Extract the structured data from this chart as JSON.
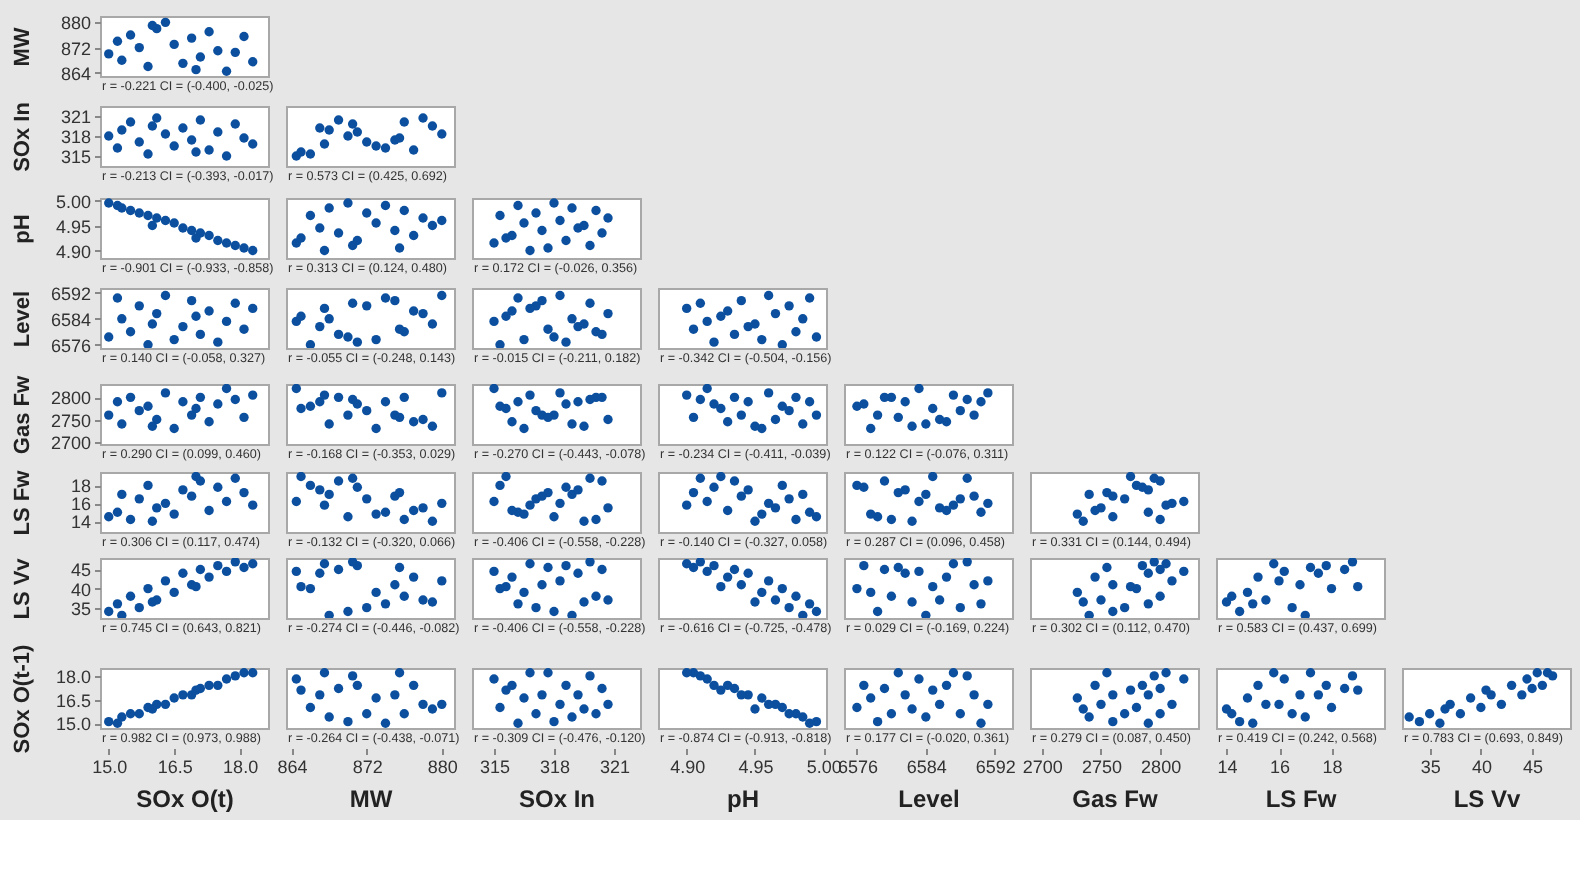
{
  "chart_data": [
    {
      "type": "scatter",
      "ylabel": "MW",
      "x": [
        15.0,
        15.2,
        15.3,
        15.5,
        15.7,
        15.9,
        16.1,
        16.3,
        16.5,
        16.7,
        16.9,
        17.1,
        17.3,
        17.5,
        17.7,
        17.9,
        18.1,
        18.3,
        16.0,
        17.0
      ],
      "series": [
        {
          "color": "#0b4f9e",
          "values": [
            870,
            874,
            868,
            876,
            872,
            866,
            878,
            880,
            873,
            867,
            875,
            869,
            877,
            871,
            864.5,
            870.5,
            875.5,
            867.5,
            879,
            865
          ]
        }
      ],
      "xlim": [
        14.8,
        18.65
      ],
      "ylim": [
        863,
        882
      ],
      "yticks": [
        864,
        872,
        880
      ],
      "marker": "circle",
      "tick_labels": "y",
      "annotations": [
        "r = -0.221 CI = (-0.400, -0.025)"
      ]
    },
    {
      "type": "scatter",
      "ylabel": "SOx In",
      "x": [
        15.0,
        15.2,
        15.3,
        15.5,
        15.7,
        15.9,
        16.1,
        16.3,
        16.5,
        16.7,
        16.9,
        17.1,
        17.3,
        17.5,
        17.7,
        17.9,
        18.1,
        18.3,
        16.0,
        17.0
      ],
      "series": [
        {
          "color": "#0b4f9e",
          "values": [
            318.0,
            316.2,
            318.9,
            320.1,
            317.1,
            315.3,
            320.7,
            318.3,
            316.5,
            319.2,
            317.4,
            320.4,
            315.9,
            318.6,
            315.0,
            319.8,
            317.7,
            316.8,
            319.5,
            315.6
          ]
        }
      ],
      "xlim": [
        14.8,
        18.65
      ],
      "ylim": [
        313.5,
        322.5
      ],
      "yticks": [
        315,
        318,
        321
      ],
      "marker": "circle",
      "tick_labels": "y",
      "annotations": [
        "r = -0.213 CI = (-0.393, -0.017)"
      ]
    },
    {
      "type": "scatter",
      "x": [
        870,
        874,
        868,
        876,
        872,
        866,
        878,
        880,
        873,
        867,
        875,
        869,
        877,
        871,
        864.5,
        870.5,
        875.5,
        867.5,
        879,
        865
      ],
      "series": [
        {
          "color": "#0b4f9e",
          "values": [
            318.0,
            316.2,
            318.9,
            320.1,
            317.1,
            315.3,
            320.7,
            318.3,
            316.5,
            319.2,
            317.4,
            320.4,
            315.9,
            318.6,
            315.0,
            319.8,
            317.7,
            316.8,
            319.5,
            315.6
          ]
        }
      ],
      "xlim": [
        863.4,
        881.3
      ],
      "ylim": [
        313.5,
        322.5
      ],
      "marker": "circle",
      "tick_labels": false,
      "annotations": [
        "r = 0.573 CI = (0.425, 0.692)"
      ]
    },
    {
      "type": "scatter",
      "ylabel": "pH",
      "x": [
        15.0,
        15.2,
        15.3,
        15.5,
        15.7,
        15.9,
        16.1,
        16.3,
        16.5,
        16.7,
        16.9,
        17.1,
        17.3,
        17.5,
        17.7,
        17.9,
        18.1,
        18.3,
        16.0,
        17.0
      ],
      "series": [
        {
          "color": "#0b4f9e",
          "values": [
            4.995,
            4.99,
            4.985,
            4.98,
            4.975,
            4.97,
            4.965,
            4.96,
            4.955,
            4.945,
            4.94,
            4.935,
            4.93,
            4.92,
            4.915,
            4.91,
            4.905,
            4.9,
            4.95,
            4.925
          ]
        }
      ],
      "xlim": [
        14.8,
        18.65
      ],
      "ylim": [
        4.885,
        5.005
      ],
      "yticks": [
        {
          "value": 4.9,
          "label": "4.90"
        },
        4.95,
        {
          "value": 5,
          "label": "5.00"
        }
      ],
      "marker": "circle",
      "tick_labels": "y",
      "annotations": [
        "r = -0.901 CI = (-0.933, -0.858)"
      ]
    },
    {
      "type": "scatter",
      "x": [
        870,
        874,
        868,
        876,
        872,
        866,
        878,
        880,
        873,
        867,
        875,
        869,
        877,
        871,
        864.5,
        870.5,
        875.5,
        867.5,
        879,
        865
      ],
      "series": [
        {
          "color": "#0b4f9e",
          "values": [
            4.995,
            4.99,
            4.985,
            4.98,
            4.975,
            4.97,
            4.965,
            4.96,
            4.955,
            4.945,
            4.94,
            4.935,
            4.93,
            4.92,
            4.915,
            4.91,
            4.905,
            4.9,
            4.95,
            4.925
          ]
        }
      ],
      "xlim": [
        863.4,
        881.3
      ],
      "ylim": [
        4.885,
        5.005
      ],
      "marker": "circle",
      "tick_labels": false,
      "annotations": [
        "r = 0.313 CI = (0.124, 0.480)"
      ]
    },
    {
      "type": "scatter",
      "x": [
        318.0,
        316.2,
        318.9,
        320.1,
        317.1,
        315.3,
        320.7,
        318.3,
        316.5,
        319.2,
        317.4,
        320.4,
        315.9,
        318.6,
        315.0,
        319.8,
        317.7,
        316.8,
        319.5,
        315.6
      ],
      "series": [
        {
          "color": "#0b4f9e",
          "values": [
            4.995,
            4.99,
            4.985,
            4.98,
            4.975,
            4.97,
            4.965,
            4.96,
            4.955,
            4.945,
            4.94,
            4.935,
            4.93,
            4.92,
            4.915,
            4.91,
            4.905,
            4.9,
            4.95,
            4.925
          ]
        }
      ],
      "xlim": [
        313.9,
        322.3
      ],
      "ylim": [
        4.885,
        5.005
      ],
      "marker": "circle",
      "tick_labels": false,
      "annotations": [
        "r = 0.172 CI = (-0.026, 0.356)"
      ]
    },
    {
      "type": "scatter",
      "ylabel": "Level",
      "x": [
        15.0,
        15.2,
        15.3,
        15.5,
        15.7,
        15.9,
        16.1,
        16.3,
        16.5,
        16.7,
        16.9,
        17.1,
        17.3,
        17.5,
        17.7,
        17.9,
        18.1,
        18.3,
        16.0,
        17.0
      ],
      "series": [
        {
          "color": "#0b4f9e",
          "values": [
            6578.4,
            6590.4,
            6584.0,
            6580.0,
            6588.0,
            6576.0,
            6585.6,
            6591.2,
            6577.6,
            6581.6,
            6589.6,
            6579.2,
            6586.4,
            6576.8,
            6583.2,
            6588.8,
            6580.8,
            6587.2,
            6582.4,
            6584.8
          ]
        }
      ],
      "xlim": [
        14.8,
        18.65
      ],
      "ylim": [
        6575,
        6593.5
      ],
      "yticks": [
        6576,
        6584,
        6592
      ],
      "marker": "circle",
      "tick_labels": "y",
      "annotations": [
        "r = 0.140 CI = (-0.058, 0.327)"
      ]
    },
    {
      "type": "scatter",
      "x": [
        870,
        874,
        868,
        876,
        872,
        866,
        878,
        880,
        873,
        867,
        875,
        869,
        877,
        871,
        864.5,
        870.5,
        875.5,
        867.5,
        879,
        865
      ],
      "series": [
        {
          "color": "#0b4f9e",
          "values": [
            6578.4,
            6590.4,
            6584.0,
            6580.0,
            6588.0,
            6576.0,
            6585.6,
            6591.2,
            6577.6,
            6581.6,
            6589.6,
            6579.2,
            6586.4,
            6576.8,
            6583.2,
            6588.8,
            6580.8,
            6587.2,
            6582.4,
            6584.8
          ]
        }
      ],
      "xlim": [
        863.4,
        881.3
      ],
      "ylim": [
        6575,
        6593.5
      ],
      "marker": "circle",
      "tick_labels": false,
      "annotations": [
        "r = -0.055 CI = (-0.248, 0.143)"
      ]
    },
    {
      "type": "scatter",
      "x": [
        318.0,
        316.2,
        318.9,
        320.1,
        317.1,
        315.3,
        320.7,
        318.3,
        316.5,
        319.2,
        317.4,
        320.4,
        315.9,
        318.6,
        315.0,
        319.8,
        317.7,
        316.8,
        319.5,
        315.6
      ],
      "series": [
        {
          "color": "#0b4f9e",
          "values": [
            6578.4,
            6590.4,
            6584.0,
            6580.0,
            6588.0,
            6576.0,
            6585.6,
            6591.2,
            6577.6,
            6581.6,
            6589.6,
            6579.2,
            6586.4,
            6576.8,
            6583.2,
            6588.8,
            6580.8,
            6587.2,
            6582.4,
            6584.8
          ]
        }
      ],
      "xlim": [
        313.9,
        322.3
      ],
      "ylim": [
        6575,
        6593.5
      ],
      "marker": "circle",
      "tick_labels": false,
      "annotations": [
        "r = -0.015 CI = (-0.211, 0.182)"
      ]
    },
    {
      "type": "scatter",
      "x": [
        4.995,
        4.99,
        4.985,
        4.98,
        4.975,
        4.97,
        4.965,
        4.96,
        4.955,
        4.945,
        4.94,
        4.935,
        4.93,
        4.92,
        4.915,
        4.91,
        4.905,
        4.9,
        4.95,
        4.925
      ],
      "series": [
        {
          "color": "#0b4f9e",
          "values": [
            6578.4,
            6590.4,
            6584.0,
            6580.0,
            6588.0,
            6576.0,
            6585.6,
            6591.2,
            6577.6,
            6581.6,
            6589.6,
            6579.2,
            6586.4,
            6576.8,
            6583.2,
            6588.8,
            6580.8,
            6587.2,
            6582.4,
            6584.8
          ]
        }
      ],
      "xlim": [
        4.879,
        5.002
      ],
      "ylim": [
        6575,
        6593.5
      ],
      "marker": "circle",
      "tick_labels": false,
      "annotations": [
        "r = -0.342 CI = (-0.504, -0.156)"
      ]
    },
    {
      "type": "scatter",
      "ylabel": "Gas Fw",
      "x": [
        15.0,
        15.2,
        15.3,
        15.5,
        15.7,
        15.9,
        16.1,
        16.3,
        16.5,
        16.7,
        16.9,
        17.1,
        17.3,
        17.5,
        17.7,
        17.9,
        18.1,
        18.3,
        16.0,
        17.0
      ],
      "series": [
        {
          "color": "#0b4f9e",
          "values": [
            2760,
            2790,
            2740,
            2800,
            2770,
            2780,
            2750,
            2810,
            2730,
            2790,
            2760,
            2800,
            2745,
            2785,
            2820,
            2795,
            2755,
            2805,
            2735,
            2775
          ]
        }
      ],
      "xlim": [
        14.8,
        18.65
      ],
      "ylim": [
        2695,
        2830
      ],
      "yticks": [
        2700,
        2750,
        2800
      ],
      "marker": "circle",
      "tick_labels": "y",
      "annotations": [
        "r = 0.290 CI = (0.099, 0.460)"
      ]
    },
    {
      "type": "scatter",
      "x": [
        870,
        874,
        868,
        876,
        872,
        866,
        878,
        880,
        873,
        867,
        875,
        869,
        877,
        871,
        864.5,
        870.5,
        875.5,
        867.5,
        879,
        865
      ],
      "series": [
        {
          "color": "#0b4f9e",
          "values": [
            2760,
            2790,
            2740,
            2800,
            2770,
            2780,
            2750,
            2810,
            2730,
            2790,
            2760,
            2800,
            2745,
            2785,
            2820,
            2795,
            2755,
            2805,
            2735,
            2775
          ]
        }
      ],
      "xlim": [
        863.4,
        881.3
      ],
      "ylim": [
        2695,
        2830
      ],
      "marker": "circle",
      "tick_labels": false,
      "annotations": [
        "r = -0.168 CI = (-0.353, 0.029)"
      ]
    },
    {
      "type": "scatter",
      "x": [
        318.0,
        316.2,
        318.9,
        320.1,
        317.1,
        315.3,
        320.7,
        318.3,
        316.5,
        319.2,
        317.4,
        320.4,
        315.9,
        318.6,
        315.0,
        319.8,
        317.7,
        316.8,
        319.5,
        315.6
      ],
      "series": [
        {
          "color": "#0b4f9e",
          "values": [
            2760,
            2790,
            2740,
            2800,
            2770,
            2780,
            2750,
            2810,
            2730,
            2790,
            2760,
            2800,
            2745,
            2785,
            2820,
            2795,
            2755,
            2805,
            2735,
            2775
          ]
        }
      ],
      "xlim": [
        313.9,
        322.3
      ],
      "ylim": [
        2695,
        2830
      ],
      "marker": "circle",
      "tick_labels": false,
      "annotations": [
        "r = -0.270 CI = (-0.443, -0.078)"
      ]
    },
    {
      "type": "scatter",
      "x": [
        4.995,
        4.99,
        4.985,
        4.98,
        4.975,
        4.97,
        4.965,
        4.96,
        4.955,
        4.945,
        4.94,
        4.935,
        4.93,
        4.92,
        4.915,
        4.91,
        4.905,
        4.9,
        4.95,
        4.925
      ],
      "series": [
        {
          "color": "#0b4f9e",
          "values": [
            2760,
            2790,
            2740,
            2800,
            2770,
            2780,
            2750,
            2810,
            2730,
            2790,
            2760,
            2800,
            2745,
            2785,
            2820,
            2795,
            2755,
            2805,
            2735,
            2775
          ]
        }
      ],
      "xlim": [
        4.879,
        5.002
      ],
      "ylim": [
        2695,
        2830
      ],
      "marker": "circle",
      "tick_labels": false,
      "annotations": [
        "r = -0.234 CI = (-0.411, -0.039)"
      ]
    },
    {
      "type": "scatter",
      "x": [
        6578.4,
        6590.4,
        6584.0,
        6580.0,
        6588.0,
        6576.0,
        6585.6,
        6591.2,
        6577.6,
        6581.6,
        6589.6,
        6579.2,
        6586.4,
        6576.8,
        6583.2,
        6588.8,
        6580.8,
        6587.2,
        6582.4,
        6584.8
      ],
      "series": [
        {
          "color": "#0b4f9e",
          "values": [
            2760,
            2790,
            2740,
            2800,
            2770,
            2780,
            2750,
            2810,
            2730,
            2790,
            2760,
            2800,
            2745,
            2785,
            2820,
            2795,
            2755,
            2805,
            2735,
            2775
          ]
        }
      ],
      "xlim": [
        6574.5,
        6594
      ],
      "ylim": [
        2695,
        2830
      ],
      "marker": "circle",
      "tick_labels": false,
      "annotations": [
        "r = 0.122 CI = (-0.076, 0.311)"
      ]
    },
    {
      "type": "scatter",
      "ylabel": "LS Fw",
      "x": [
        15.0,
        15.2,
        15.3,
        15.5,
        15.7,
        15.9,
        16.1,
        16.3,
        16.5,
        16.7,
        16.9,
        17.1,
        17.3,
        17.5,
        17.7,
        17.9,
        18.1,
        18.3,
        16.0,
        17.0
      ],
      "series": [
        {
          "color": "#0b4f9e",
          "values": [
            14.5,
            15.0,
            17.0,
            14.2,
            16.5,
            18.0,
            15.5,
            16.0,
            14.8,
            17.5,
            16.8,
            18.5,
            15.2,
            17.8,
            16.2,
            18.8,
            17.2,
            15.8,
            14.0,
            19.0
          ]
        }
      ],
      "xlim": [
        14.8,
        18.65
      ],
      "ylim": [
        12.8,
        19.5
      ],
      "yticks": [
        14,
        16,
        18
      ],
      "marker": "circle",
      "tick_labels": "y",
      "annotations": [
        "r = 0.306 CI = (0.117, 0.474)"
      ]
    },
    {
      "type": "scatter",
      "x": [
        870,
        874,
        868,
        876,
        872,
        866,
        878,
        880,
        873,
        867,
        875,
        869,
        877,
        871,
        864.5,
        870.5,
        875.5,
        867.5,
        879,
        865
      ],
      "series": [
        {
          "color": "#0b4f9e",
          "values": [
            14.5,
            15.0,
            17.0,
            14.2,
            16.5,
            18.0,
            15.5,
            16.0,
            14.8,
            17.5,
            16.8,
            18.5,
            15.2,
            17.8,
            16.2,
            18.8,
            17.2,
            15.8,
            14.0,
            19.0
          ]
        }
      ],
      "xlim": [
        863.4,
        881.3
      ],
      "ylim": [
        12.8,
        19.5
      ],
      "marker": "circle",
      "tick_labels": false,
      "annotations": [
        "r = -0.132 CI = (-0.320, 0.066)"
      ]
    },
    {
      "type": "scatter",
      "x": [
        318.0,
        316.2,
        318.9,
        320.1,
        317.1,
        315.3,
        320.7,
        318.3,
        316.5,
        319.2,
        317.4,
        320.4,
        315.9,
        318.6,
        315.0,
        319.8,
        317.7,
        316.8,
        319.5,
        315.6
      ],
      "series": [
        {
          "color": "#0b4f9e",
          "values": [
            14.5,
            15.0,
            17.0,
            14.2,
            16.5,
            18.0,
            15.5,
            16.0,
            14.8,
            17.5,
            16.8,
            18.5,
            15.2,
            17.8,
            16.2,
            18.8,
            17.2,
            15.8,
            14.0,
            19.0
          ]
        }
      ],
      "xlim": [
        313.9,
        322.3
      ],
      "ylim": [
        12.8,
        19.5
      ],
      "marker": "circle",
      "tick_labels": false,
      "annotations": [
        "r = -0.406 CI = (-0.558, -0.228)"
      ]
    },
    {
      "type": "scatter",
      "x": [
        4.995,
        4.99,
        4.985,
        4.98,
        4.975,
        4.97,
        4.965,
        4.96,
        4.955,
        4.945,
        4.94,
        4.935,
        4.93,
        4.92,
        4.915,
        4.91,
        4.905,
        4.9,
        4.95,
        4.925
      ],
      "series": [
        {
          "color": "#0b4f9e",
          "values": [
            14.5,
            15.0,
            17.0,
            14.2,
            16.5,
            18.0,
            15.5,
            16.0,
            14.8,
            17.5,
            16.8,
            18.5,
            15.2,
            17.8,
            16.2,
            18.8,
            17.2,
            15.8,
            14.0,
            19.0
          ]
        }
      ],
      "xlim": [
        4.879,
        5.002
      ],
      "ylim": [
        12.8,
        19.5
      ],
      "marker": "circle",
      "tick_labels": false,
      "annotations": [
        "r = -0.140 CI = (-0.327, 0.058)"
      ]
    },
    {
      "type": "scatter",
      "x": [
        6578.4,
        6590.4,
        6584.0,
        6580.0,
        6588.0,
        6576.0,
        6585.6,
        6591.2,
        6577.6,
        6581.6,
        6589.6,
        6579.2,
        6586.4,
        6576.8,
        6583.2,
        6588.8,
        6580.8,
        6587.2,
        6582.4,
        6584.8
      ],
      "series": [
        {
          "color": "#0b4f9e",
          "values": [
            14.5,
            15.0,
            17.0,
            14.2,
            16.5,
            18.0,
            15.5,
            16.0,
            14.8,
            17.5,
            16.8,
            18.5,
            15.2,
            17.8,
            16.2,
            18.8,
            17.2,
            15.8,
            14.0,
            19.0
          ]
        }
      ],
      "xlim": [
        6574.5,
        6594
      ],
      "ylim": [
        12.8,
        19.5
      ],
      "marker": "circle",
      "tick_labels": false,
      "annotations": [
        "r = 0.287 CI = (0.096, 0.458)"
      ]
    },
    {
      "type": "scatter",
      "x": [
        2760,
        2790,
        2740,
        2800,
        2770,
        2780,
        2750,
        2810,
        2730,
        2790,
        2760,
        2800,
        2745,
        2785,
        2820,
        2795,
        2755,
        2805,
        2735,
        2775
      ],
      "series": [
        {
          "color": "#0b4f9e",
          "values": [
            14.5,
            15.0,
            17.0,
            14.2,
            16.5,
            18.0,
            15.5,
            16.0,
            14.8,
            17.5,
            16.8,
            18.5,
            15.2,
            17.8,
            16.2,
            18.8,
            17.2,
            15.8,
            14.0,
            19.0
          ]
        }
      ],
      "xlim": [
        2690,
        2832
      ],
      "ylim": [
        12.8,
        19.5
      ],
      "marker": "circle",
      "tick_labels": false,
      "annotations": [
        "r = 0.331 CI = (0.144, 0.494)"
      ]
    },
    {
      "type": "scatter",
      "ylabel": "LS Vv",
      "x": [
        15.0,
        15.2,
        15.3,
        15.5,
        15.7,
        15.9,
        16.1,
        16.3,
        16.5,
        16.7,
        16.9,
        17.1,
        17.3,
        17.5,
        17.7,
        17.9,
        18.1,
        18.3,
        16.0,
        17.0
      ],
      "series": [
        {
          "color": "#0b4f9e",
          "values": [
            34,
            36,
            33,
            38,
            35,
            40,
            37,
            42,
            39,
            44,
            41,
            45,
            43,
            46,
            44.5,
            47,
            45.5,
            46.5,
            36.5,
            40.5
          ]
        }
      ],
      "xlim": [
        14.8,
        18.65
      ],
      "ylim": [
        32.3,
        48
      ],
      "yticks": [
        35,
        40,
        45
      ],
      "marker": "circle",
      "tick_labels": "y",
      "annotations": [
        "r = 0.745 CI = (0.643, 0.821)"
      ]
    },
    {
      "type": "scatter",
      "x": [
        870,
        874,
        868,
        876,
        872,
        866,
        878,
        880,
        873,
        867,
        875,
        869,
        877,
        871,
        864.5,
        870.5,
        875.5,
        867.5,
        879,
        865
      ],
      "series": [
        {
          "color": "#0b4f9e",
          "values": [
            34,
            36,
            33,
            38,
            35,
            40,
            37,
            42,
            39,
            44,
            41,
            45,
            43,
            46,
            44.5,
            47,
            45.5,
            46.5,
            36.5,
            40.5
          ]
        }
      ],
      "xlim": [
        863.4,
        881.3
      ],
      "ylim": [
        32.3,
        48
      ],
      "marker": "circle",
      "tick_labels": false,
      "annotations": [
        "r = -0.274 CI = (-0.446, -0.082)"
      ]
    },
    {
      "type": "scatter",
      "x": [
        318.0,
        316.2,
        318.9,
        320.1,
        317.1,
        315.3,
        320.7,
        318.3,
        316.5,
        319.2,
        317.4,
        320.4,
        315.9,
        318.6,
        315.0,
        319.8,
        317.7,
        316.8,
        319.5,
        315.6
      ],
      "series": [
        {
          "color": "#0b4f9e",
          "values": [
            34,
            36,
            33,
            38,
            35,
            40,
            37,
            42,
            39,
            44,
            41,
            45,
            43,
            46,
            44.5,
            47,
            45.5,
            46.5,
            36.5,
            40.5
          ]
        }
      ],
      "xlim": [
        313.9,
        322.3
      ],
      "ylim": [
        32.3,
        48
      ],
      "marker": "circle",
      "tick_labels": false,
      "annotations": [
        "r = -0.406 CI = (-0.558, -0.228)"
      ]
    },
    {
      "type": "scatter",
      "x": [
        4.995,
        4.99,
        4.985,
        4.98,
        4.975,
        4.97,
        4.965,
        4.96,
        4.955,
        4.945,
        4.94,
        4.935,
        4.93,
        4.92,
        4.915,
        4.91,
        4.905,
        4.9,
        4.95,
        4.925
      ],
      "series": [
        {
          "color": "#0b4f9e",
          "values": [
            34,
            36,
            33,
            38,
            35,
            40,
            37,
            42,
            39,
            44,
            41,
            45,
            43,
            46,
            44.5,
            47,
            45.5,
            46.5,
            36.5,
            40.5
          ]
        }
      ],
      "xlim": [
        4.879,
        5.002
      ],
      "ylim": [
        32.3,
        48
      ],
      "marker": "circle",
      "tick_labels": false,
      "annotations": [
        "r = -0.616 CI = (-0.725, -0.478)"
      ]
    },
    {
      "type": "scatter",
      "x": [
        6578.4,
        6590.4,
        6584.0,
        6580.0,
        6588.0,
        6576.0,
        6585.6,
        6591.2,
        6577.6,
        6581.6,
        6589.6,
        6579.2,
        6586.4,
        6576.8,
        6583.2,
        6588.8,
        6580.8,
        6587.2,
        6582.4,
        6584.8
      ],
      "series": [
        {
          "color": "#0b4f9e",
          "values": [
            34,
            36,
            33,
            38,
            35,
            40,
            37,
            42,
            39,
            44,
            41,
            45,
            43,
            46,
            44.5,
            47,
            45.5,
            46.5,
            36.5,
            40.5
          ]
        }
      ],
      "xlim": [
        6574.5,
        6594
      ],
      "ylim": [
        32.3,
        48
      ],
      "marker": "circle",
      "tick_labels": false,
      "annotations": [
        "r = 0.029 CI = (-0.169, 0.224)"
      ]
    },
    {
      "type": "scatter",
      "x": [
        2760,
        2790,
        2740,
        2800,
        2770,
        2780,
        2750,
        2810,
        2730,
        2790,
        2760,
        2800,
        2745,
        2785,
        2820,
        2795,
        2755,
        2805,
        2735,
        2775
      ],
      "series": [
        {
          "color": "#0b4f9e",
          "values": [
            34,
            36,
            33,
            38,
            35,
            40,
            37,
            42,
            39,
            44,
            41,
            45,
            43,
            46,
            44.5,
            47,
            45.5,
            46.5,
            36.5,
            40.5
          ]
        }
      ],
      "xlim": [
        2690,
        2832
      ],
      "ylim": [
        32.3,
        48
      ],
      "marker": "circle",
      "tick_labels": false,
      "annotations": [
        "r = 0.302 CI = (0.112, 0.470)"
      ]
    },
    {
      "type": "scatter",
      "x": [
        14.5,
        15.0,
        17.0,
        14.2,
        16.5,
        18.0,
        15.5,
        16.0,
        14.8,
        17.5,
        16.8,
        18.5,
        15.2,
        17.8,
        16.2,
        18.8,
        17.2,
        15.8,
        14.0,
        19.0
      ],
      "series": [
        {
          "color": "#0b4f9e",
          "values": [
            34,
            36,
            33,
            38,
            35,
            40,
            37,
            42,
            39,
            44,
            41,
            45,
            43,
            46,
            44.5,
            47,
            45.5,
            46.5,
            36.5,
            40.5
          ]
        }
      ],
      "xlim": [
        13.6,
        20
      ],
      "ylim": [
        32.3,
        48
      ],
      "marker": "circle",
      "tick_labels": false,
      "annotations": [
        "r = 0.583 CI = (0.437, 0.699)"
      ]
    },
    {
      "type": "scatter",
      "ylabel": "SOx O(t-1)",
      "xlabel": "SOx O(t)",
      "x": [
        15.0,
        15.2,
        15.3,
        15.5,
        15.7,
        15.9,
        16.1,
        16.3,
        16.5,
        16.7,
        16.9,
        17.1,
        17.3,
        17.5,
        17.7,
        17.9,
        18.1,
        18.3,
        16.0,
        17.0
      ],
      "series": [
        {
          "color": "#0b4f9e",
          "values": [
            15.1,
            15.0,
            15.4,
            15.6,
            15.6,
            16.0,
            16.2,
            16.2,
            16.6,
            16.8,
            16.8,
            17.2,
            17.4,
            17.4,
            17.8,
            18.0,
            18.2,
            18.2,
            15.9,
            17.1
          ]
        }
      ],
      "xlim": [
        14.8,
        18.65
      ],
      "xticks": [
        {
          "value": 15,
          "label": "15.0"
        },
        16.5,
        {
          "value": 18,
          "label": "18.0"
        }
      ],
      "ylim": [
        14.7,
        18.5
      ],
      "yticks": [
        {
          "value": 15,
          "label": "15.0"
        },
        16.5,
        {
          "value": 18,
          "label": "18.0"
        }
      ],
      "marker": "circle",
      "annotations": [
        "r = 0.982 CI = (0.973, 0.988)"
      ]
    },
    {
      "type": "scatter",
      "xlabel": "MW",
      "x": [
        870,
        874,
        868,
        876,
        872,
        866,
        878,
        880,
        873,
        867,
        875,
        869,
        877,
        871,
        864.5,
        870.5,
        875.5,
        867.5,
        879,
        865
      ],
      "series": [
        {
          "color": "#0b4f9e",
          "values": [
            15.1,
            15.0,
            15.4,
            15.6,
            15.6,
            16.0,
            16.2,
            16.2,
            16.6,
            16.8,
            16.8,
            17.2,
            17.4,
            17.4,
            17.8,
            18.0,
            18.2,
            18.2,
            15.9,
            17.1
          ]
        }
      ],
      "xlim": [
        863.4,
        881.3
      ],
      "xticks": [
        864,
        872,
        880
      ],
      "ylim": [
        14.7,
        18.5
      ],
      "marker": "circle",
      "tick_labels": "x",
      "annotations": [
        "r = -0.264 CI = (-0.438, -0.071)"
      ]
    },
    {
      "type": "scatter",
      "xlabel": "SOx In",
      "x": [
        318.0,
        316.2,
        318.9,
        320.1,
        317.1,
        315.3,
        320.7,
        318.3,
        316.5,
        319.2,
        317.4,
        320.4,
        315.9,
        318.6,
        315.0,
        319.8,
        317.7,
        316.8,
        319.5,
        315.6
      ],
      "series": [
        {
          "color": "#0b4f9e",
          "values": [
            15.1,
            15.0,
            15.4,
            15.6,
            15.6,
            16.0,
            16.2,
            16.2,
            16.6,
            16.8,
            16.8,
            17.2,
            17.4,
            17.4,
            17.8,
            18.0,
            18.2,
            18.2,
            15.9,
            17.1
          ]
        }
      ],
      "xlim": [
        313.9,
        322.3
      ],
      "xticks": [
        315,
        318,
        321
      ],
      "ylim": [
        14.7,
        18.5
      ],
      "marker": "circle",
      "tick_labels": "x",
      "annotations": [
        "r = -0.309 CI = (-0.476, -0.120)"
      ]
    },
    {
      "type": "scatter",
      "xlabel": "pH",
      "x": [
        4.995,
        4.99,
        4.985,
        4.98,
        4.975,
        4.97,
        4.965,
        4.96,
        4.955,
        4.945,
        4.94,
        4.935,
        4.93,
        4.92,
        4.915,
        4.91,
        4.905,
        4.9,
        4.95,
        4.925
      ],
      "series": [
        {
          "color": "#0b4f9e",
          "values": [
            15.1,
            15.0,
            15.4,
            15.6,
            15.6,
            16.0,
            16.2,
            16.2,
            16.6,
            16.8,
            16.8,
            17.2,
            17.4,
            17.4,
            17.8,
            18.0,
            18.2,
            18.2,
            15.9,
            17.1
          ]
        }
      ],
      "xlim": [
        4.879,
        5.002
      ],
      "xticks": [
        {
          "value": 4.9,
          "label": "4.90"
        },
        4.95,
        {
          "value": 5,
          "label": "5.00"
        }
      ],
      "ylim": [
        14.7,
        18.5
      ],
      "marker": "circle",
      "tick_labels": "x",
      "annotations": [
        "r = -0.874 CI = (-0.913, -0.818)"
      ]
    },
    {
      "type": "scatter",
      "xlabel": "Level",
      "x": [
        6578.4,
        6590.4,
        6584.0,
        6580.0,
        6588.0,
        6576.0,
        6585.6,
        6591.2,
        6577.6,
        6581.6,
        6589.6,
        6579.2,
        6586.4,
        6576.8,
        6583.2,
        6588.8,
        6580.8,
        6587.2,
        6582.4,
        6584.8
      ],
      "series": [
        {
          "color": "#0b4f9e",
          "values": [
            15.1,
            15.0,
            15.4,
            15.6,
            15.6,
            16.0,
            16.2,
            16.2,
            16.6,
            16.8,
            16.8,
            17.2,
            17.4,
            17.4,
            17.8,
            18.0,
            18.2,
            18.2,
            15.9,
            17.1
          ]
        }
      ],
      "xlim": [
        6574.5,
        6594
      ],
      "xticks": [
        6576,
        6584,
        6592
      ],
      "ylim": [
        14.7,
        18.5
      ],
      "marker": "circle",
      "tick_labels": "x",
      "annotations": [
        "r = 0.177 CI = (-0.020, 0.361)"
      ]
    },
    {
      "type": "scatter",
      "xlabel": "Gas Fw",
      "x": [
        2760,
        2790,
        2740,
        2800,
        2770,
        2780,
        2750,
        2810,
        2730,
        2790,
        2760,
        2800,
        2745,
        2785,
        2820,
        2795,
        2755,
        2805,
        2735,
        2775
      ],
      "series": [
        {
          "color": "#0b4f9e",
          "values": [
            15.1,
            15.0,
            15.4,
            15.6,
            15.6,
            16.0,
            16.2,
            16.2,
            16.6,
            16.8,
            16.8,
            17.2,
            17.4,
            17.4,
            17.8,
            18.0,
            18.2,
            18.2,
            15.9,
            17.1
          ]
        }
      ],
      "xlim": [
        2690,
        2832
      ],
      "xticks": [
        2700,
        2750,
        2800
      ],
      "ylim": [
        14.7,
        18.5
      ],
      "marker": "circle",
      "tick_labels": "x",
      "annotations": [
        "r = 0.279 CI = (0.087, 0.450)"
      ]
    },
    {
      "type": "scatter",
      "xlabel": "LS Fw",
      "x": [
        14.5,
        15.0,
        17.0,
        14.2,
        16.5,
        18.0,
        15.5,
        16.0,
        14.8,
        17.5,
        16.8,
        18.5,
        15.2,
        17.8,
        16.2,
        18.8,
        17.2,
        15.8,
        14.0,
        19.0
      ],
      "series": [
        {
          "color": "#0b4f9e",
          "values": [
            15.1,
            15.0,
            15.4,
            15.6,
            15.6,
            16.0,
            16.2,
            16.2,
            16.6,
            16.8,
            16.8,
            17.2,
            17.4,
            17.4,
            17.8,
            18.0,
            18.2,
            18.2,
            15.9,
            17.1
          ]
        }
      ],
      "xlim": [
        13.6,
        20
      ],
      "xticks": [
        14,
        16,
        18
      ],
      "ylim": [
        14.7,
        18.5
      ],
      "marker": "circle",
      "tick_labels": "x",
      "annotations": [
        "r = 0.419 CI = (0.242, 0.568)"
      ]
    },
    {
      "type": "scatter",
      "xlabel": "LS Vv",
      "x": [
        34,
        36,
        33,
        38,
        35,
        40,
        37,
        42,
        39,
        44,
        41,
        45,
        43,
        46,
        44.5,
        47,
        45.5,
        46.5,
        36.5,
        40.5
      ],
      "series": [
        {
          "color": "#0b4f9e",
          "values": [
            15.1,
            15.0,
            15.4,
            15.6,
            15.6,
            16.0,
            16.2,
            16.2,
            16.6,
            16.8,
            16.8,
            17.2,
            17.4,
            17.4,
            17.8,
            18.0,
            18.2,
            18.2,
            15.9,
            17.1
          ]
        }
      ],
      "xlim": [
        32.3,
        48.7
      ],
      "xticks": [
        35,
        40,
        45
      ],
      "ylim": [
        14.7,
        18.5
      ],
      "marker": "circle",
      "tick_labels": "x",
      "annotations": [
        "r = 0.783 CI = (0.693, 0.849)"
      ]
    }
  ]
}
